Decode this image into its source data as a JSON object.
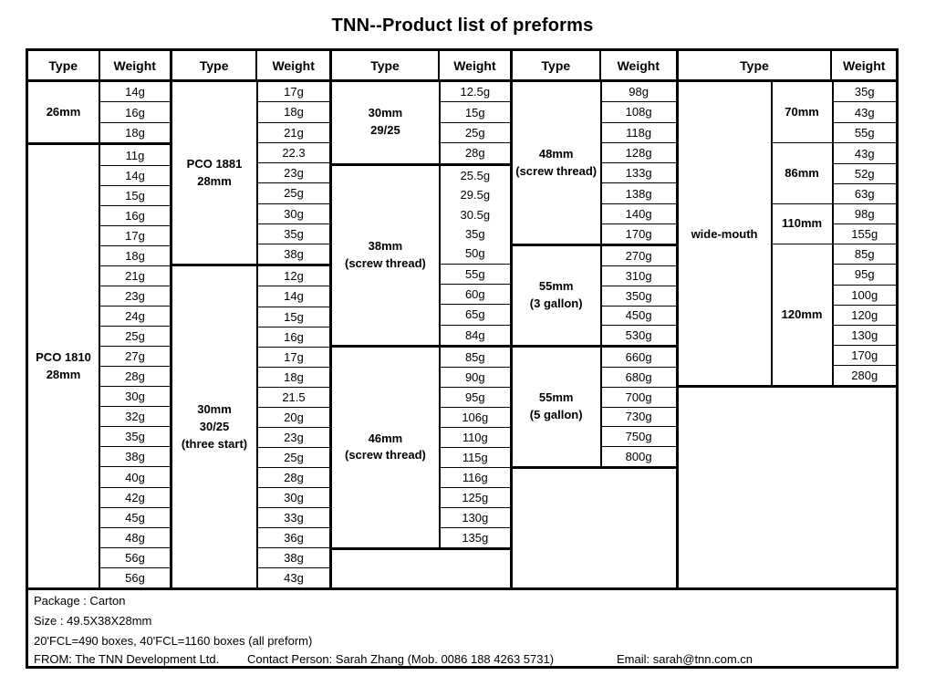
{
  "title": "TNN--Product list of preforms",
  "header": {
    "type_label": "Type",
    "weight_label": "Weight"
  },
  "columns": [
    {
      "sections": [
        {
          "type_lines": [
            "26mm"
          ],
          "weights": [
            "14g",
            "16g",
            "18g"
          ]
        },
        {
          "type_lines": [
            "PCO 1810",
            "28mm"
          ],
          "weights": [
            "11g",
            "14g",
            "15g",
            "16g",
            "17g",
            "18g",
            "21g",
            "23g",
            "24g",
            "25g",
            "27g",
            "28g",
            "30g",
            "32g",
            "35g",
            "38g",
            "40g",
            "42g",
            "45g",
            "48g",
            "56g",
            "56g"
          ]
        }
      ]
    },
    {
      "sections": [
        {
          "type_lines": [
            "PCO 1881",
            "28mm"
          ],
          "weights": [
            "17g",
            "18g",
            "21g",
            "22.3",
            "23g",
            "25g",
            "30g",
            "35g",
            "38g"
          ]
        },
        {
          "type_lines": [
            "30mm",
            "30/25",
            "(three start)"
          ],
          "weights": [
            "12g",
            "14g",
            "15g",
            "16g",
            "17g",
            "18g",
            "21.5",
            "20g",
            "23g",
            "25g",
            "28g",
            "30g",
            "33g",
            "36g",
            "38g",
            "43g"
          ]
        }
      ]
    },
    {
      "sections": [
        {
          "type_lines": [
            "30mm",
            "29/25"
          ],
          "weights": [
            "12.5g",
            "15g",
            "25g",
            "28g"
          ]
        },
        {
          "type_lines": [
            "38mm",
            "(screw thread)"
          ],
          "weights": [
            "25.5g",
            "29.5g",
            "30.5g",
            "35g",
            "50g",
            "55g",
            "60g",
            "65g",
            "84g"
          ],
          "undivided_first": 5
        },
        {
          "type_lines": [
            "46mm",
            "(screw thread)"
          ],
          "weights": [
            "85g",
            "90g",
            "95g",
            "106g",
            "110g",
            "115g",
            "116g",
            "125g",
            "130g",
            "135g"
          ]
        }
      ],
      "empty_rows": 2
    },
    {
      "sections": [
        {
          "type_lines": [
            "48mm",
            "(screw thread)"
          ],
          "weights": [
            "98g",
            "108g",
            "118g",
            "128g",
            "133g",
            "138g",
            "140g",
            "170g"
          ]
        },
        {
          "type_lines": [
            "55mm",
            "(3 gallon)"
          ],
          "weights": [
            "270g",
            "310g",
            "350g",
            "450g",
            "530g"
          ]
        },
        {
          "type_lines": [
            "55mm",
            "(5 gallon)"
          ],
          "weights": [
            "660g",
            "680g",
            "700g",
            "730g",
            "750g",
            "800g"
          ]
        }
      ],
      "empty_rows": 6
    }
  ],
  "wide_column": {
    "type_label": "wide-mouth",
    "sections": [
      {
        "type_lines": [
          "70mm"
        ],
        "weights": [
          "35g",
          "43g",
          "55g"
        ]
      },
      {
        "type_lines": [
          "86mm"
        ],
        "weights": [
          "43g",
          "52g",
          "63g"
        ]
      },
      {
        "type_lines": [
          "110mm"
        ],
        "weights": [
          "98g",
          "155g"
        ]
      },
      {
        "type_lines": [
          "120mm"
        ],
        "weights": [
          "85g",
          "95g",
          "100g",
          "120g",
          "130g",
          "170g",
          "280g"
        ]
      }
    ],
    "empty_rows": 10
  },
  "footer": {
    "package_line": "Package :  Carton",
    "size_line": "Size :  49.5X38X28mm",
    "fcl_line": "20'FCL=490 boxes,  40'FCL=1160 boxes (all preform)",
    "from": "FROM: The TNN Development Ltd.",
    "contact": "Contact Person: Sarah Zhang (Mob. 0086 188 4263 5731)",
    "email": "Email: sarah@tnn.com.cn"
  },
  "colors": {
    "border": "#000000",
    "text": "#000000",
    "background": "#ffffff"
  }
}
